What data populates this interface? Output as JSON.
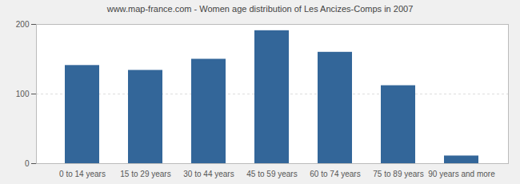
{
  "chart_data": {
    "type": "bar",
    "title": "www.map-france.com - Women age distribution of Les Ancizes-Comps in 2007",
    "categories": [
      "0 to 14 years",
      "15 to 29 years",
      "30 to 44 years",
      "45 to 59 years",
      "60 to 74 years",
      "75 to 89 years",
      "90 years and more"
    ],
    "values": [
      141,
      134,
      150,
      191,
      160,
      112,
      11
    ],
    "color": "#336699",
    "ylim": [
      0,
      200
    ],
    "yticks": [
      0,
      100,
      200
    ],
    "grid": true
  }
}
